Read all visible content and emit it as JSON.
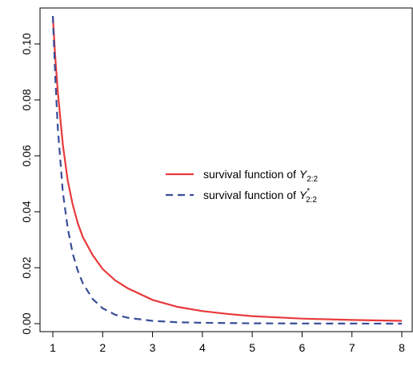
{
  "chart_data": {
    "type": "line",
    "title": "",
    "xlabel": "",
    "ylabel": "",
    "xlim": [
      1,
      8
    ],
    "ylim": [
      0,
      0.11
    ],
    "x_ticks": [
      "1",
      "2",
      "3",
      "4",
      "5",
      "6",
      "7",
      "8"
    ],
    "y_ticks": [
      "0.00",
      "0.02",
      "0.04",
      "0.06",
      "0.08",
      "0.10"
    ],
    "grid": false,
    "legend_position": "center-right",
    "legend": [
      {
        "text": "survival function of ",
        "var": "Y",
        "sub": "2:2",
        "sup": ""
      },
      {
        "text": "survival function of ",
        "var": "Y",
        "sub": "2:2",
        "sup": "*"
      }
    ],
    "series": [
      {
        "color": "#e8393b",
        "dash": "solid",
        "x": [
          1.0,
          1.05,
          1.1,
          1.2,
          1.3,
          1.4,
          1.5,
          1.6,
          1.8,
          2.0,
          2.25,
          2.5,
          3.0,
          3.5,
          4.0,
          4.5,
          5.0,
          6.0,
          7.0,
          8.0
        ],
        "y": [
          0.11,
          0.095,
          0.083,
          0.064,
          0.051,
          0.0425,
          0.036,
          0.031,
          0.0245,
          0.0195,
          0.0155,
          0.0127,
          0.0085,
          0.006,
          0.0045,
          0.0035,
          0.0027,
          0.0018,
          0.0013,
          0.001
        ]
      },
      {
        "color": "#3a4e99",
        "dash": "dashed",
        "x": [
          1.0,
          1.05,
          1.1,
          1.2,
          1.3,
          1.4,
          1.5,
          1.6,
          1.8,
          2.0,
          2.25,
          2.5,
          3.0,
          3.5,
          4.0,
          5.0,
          6.0,
          7.0,
          8.0
        ],
        "y": [
          0.11,
          0.088,
          0.07,
          0.047,
          0.034,
          0.025,
          0.019,
          0.0145,
          0.0088,
          0.0055,
          0.0032,
          0.0021,
          0.001,
          0.0005,
          0.0003,
          0.0001,
          5e-05,
          2e-05,
          1e-05
        ]
      }
    ]
  }
}
